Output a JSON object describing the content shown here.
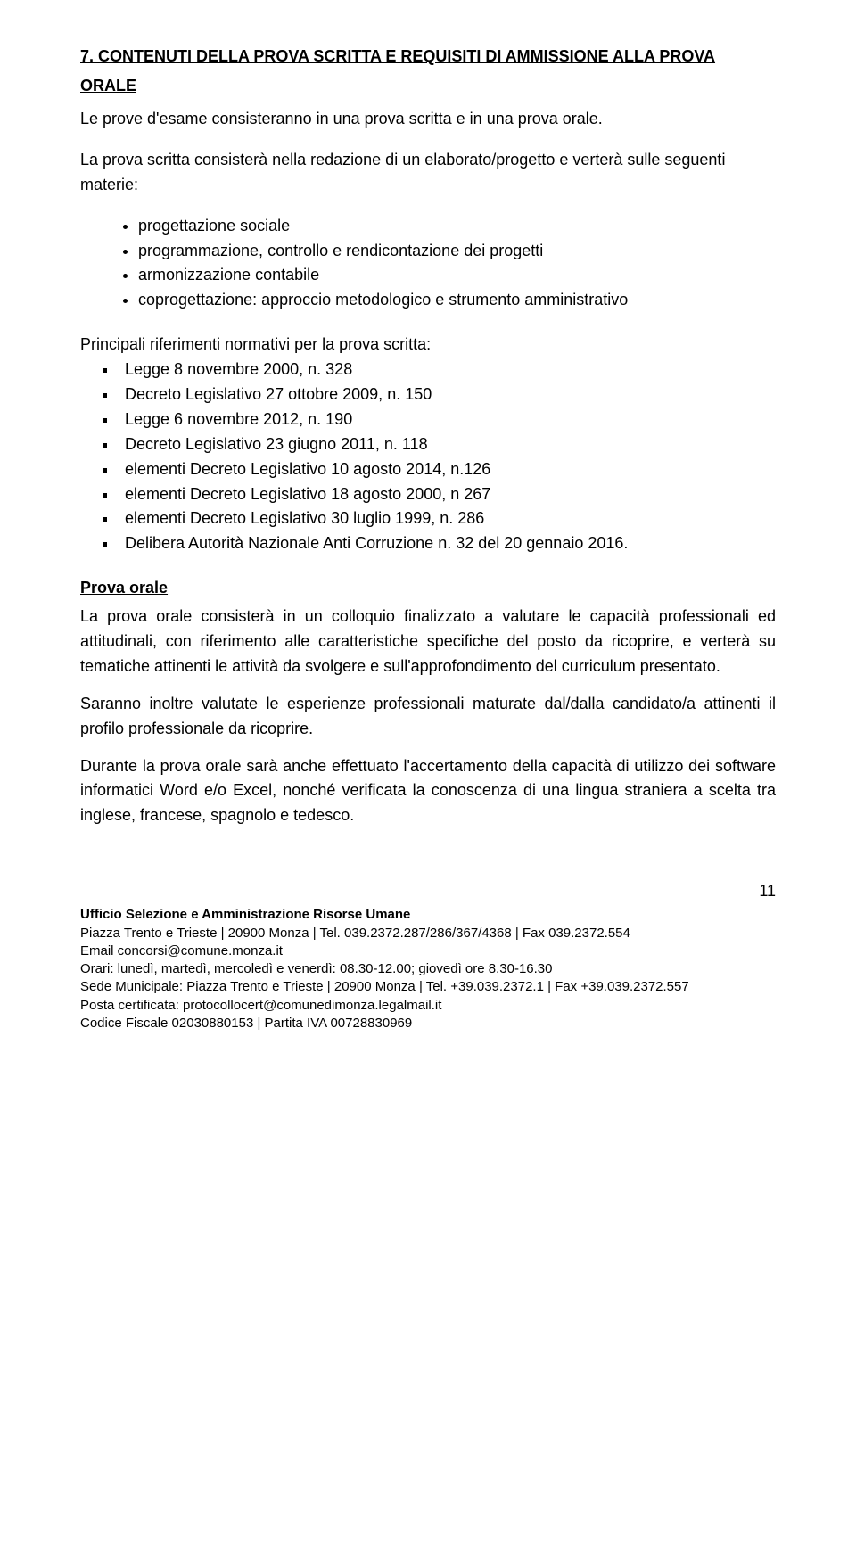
{
  "section": {
    "title_line1": "7. CONTENUTI DELLA PROVA SCRITTA E REQUISITI DI AMMISSIONE ALLA PROVA",
    "title_line2": "ORALE",
    "intro": "Le prove d'esame consisteranno in una prova scritta e in una prova orale.",
    "written_intro": "La prova scritta consisterà nella redazione di un elaborato/progetto e verterà sulle seguenti materie:",
    "bullets": [
      "progettazione sociale",
      "programmazione, controllo e rendicontazione dei progetti",
      "armonizzazione contabile",
      "coprogettazione: approccio metodologico e strumento amministrativo"
    ],
    "refs_intro": "Principali riferimenti normativi per la prova scritta:",
    "refs": [
      "Legge 8 novembre 2000, n. 328",
      "Decreto Legislativo 27 ottobre 2009, n. 150",
      "Legge 6 novembre 2012, n. 190",
      "Decreto Legislativo 23 giugno 2011, n. 118",
      "elementi Decreto Legislativo 10 agosto 2014, n.126",
      "elementi Decreto Legislativo 18 agosto 2000, n 267",
      "elementi Decreto Legislativo 30 luglio 1999, n. 286",
      "Delibera Autorità Nazionale Anti Corruzione n. 32 del 20 gennaio 2016."
    ],
    "oral_title": "Prova orale",
    "oral_p1": "La prova orale consisterà in un colloquio finalizzato a valutare le capacità professionali ed attitudinali, con riferimento alle caratteristiche specifiche del posto da ricoprire, e verterà su tematiche attinenti le attività da svolgere e sull'approfondimento del curriculum presentato.",
    "oral_p2": "Saranno inoltre valutate le esperienze professionali maturate dal/dalla candidato/a attinenti il profilo professionale da ricoprire.",
    "oral_p3": "Durante la prova orale sarà anche effettuato l'accertamento della capacità di utilizzo dei software informatici Word e/o Excel, nonché verificata la conoscenza di una lingua straniera a scelta tra inglese, francese, spagnolo e tedesco."
  },
  "page_number": "11",
  "footer": {
    "office": "Ufficio Selezione e Amministrazione Risorse Umane",
    "addr1": "Piazza Trento e Trieste | 20900 Monza | Tel. 039.2372.287/286/367/4368 | Fax 039.2372.554",
    "email": "Email concorsi@comune.monza.it",
    "hours": "Orari: lunedì, martedì, mercoledì e venerdì: 08.30-12.00; giovedì ore 8.30-16.30",
    "sede": "Sede Municipale: Piazza Trento e Trieste | 20900 Monza | Tel. +39.039.2372.1 | Fax +39.039.2372.557",
    "pec": "Posta certificata: protocollocert@comunedimonza.legalmail.it",
    "cf": "Codice Fiscale 02030880153 | Partita IVA 00728830969"
  }
}
